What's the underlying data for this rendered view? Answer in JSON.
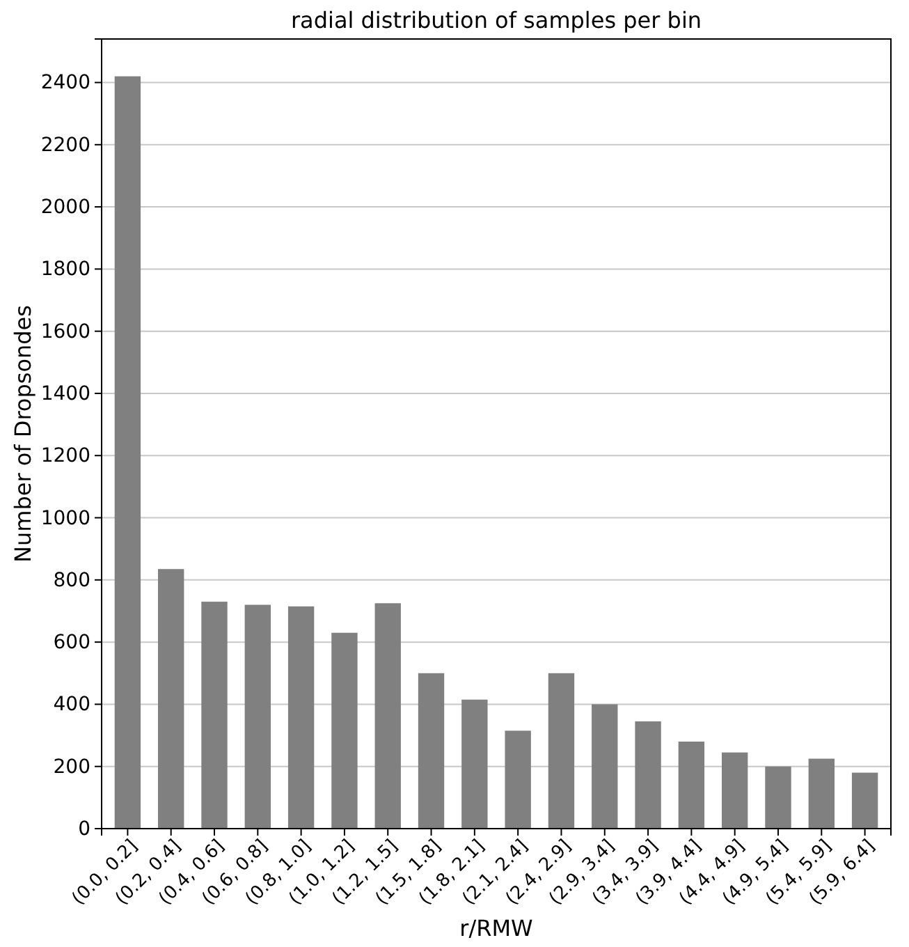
{
  "chart_data": {
    "type": "bar",
    "title": "radial distribution of samples per bin",
    "xlabel": "r/RMW",
    "ylabel": "Number of Dropsondes",
    "categories": [
      "(0.0, 0.2]",
      "(0.2, 0.4]",
      "(0.4, 0.6]",
      "(0.6, 0.8]",
      "(0.8, 1.0]",
      "(1.0, 1.2]",
      "(1.2, 1.5]",
      "(1.5, 1.8]",
      "(1.8, 2.1]",
      "(2.1, 2.4]",
      "(2.4, 2.9]",
      "(2.9, 3.4]",
      "(3.4, 3.9]",
      "(3.9, 4.4]",
      "(4.4, 4.9]",
      "(4.9, 5.4]",
      "(5.4, 5.9]",
      "(5.9, 6.4]"
    ],
    "values": [
      2420,
      835,
      730,
      720,
      715,
      630,
      725,
      500,
      415,
      315,
      500,
      400,
      345,
      280,
      245,
      200,
      225,
      180
    ],
    "color": "#808080",
    "ylim": [
      0,
      2540
    ],
    "yticks": [
      0,
      200,
      400,
      600,
      800,
      1000,
      1200,
      1400,
      1600,
      1800,
      2000,
      2200,
      2400
    ],
    "grid": "y"
  }
}
